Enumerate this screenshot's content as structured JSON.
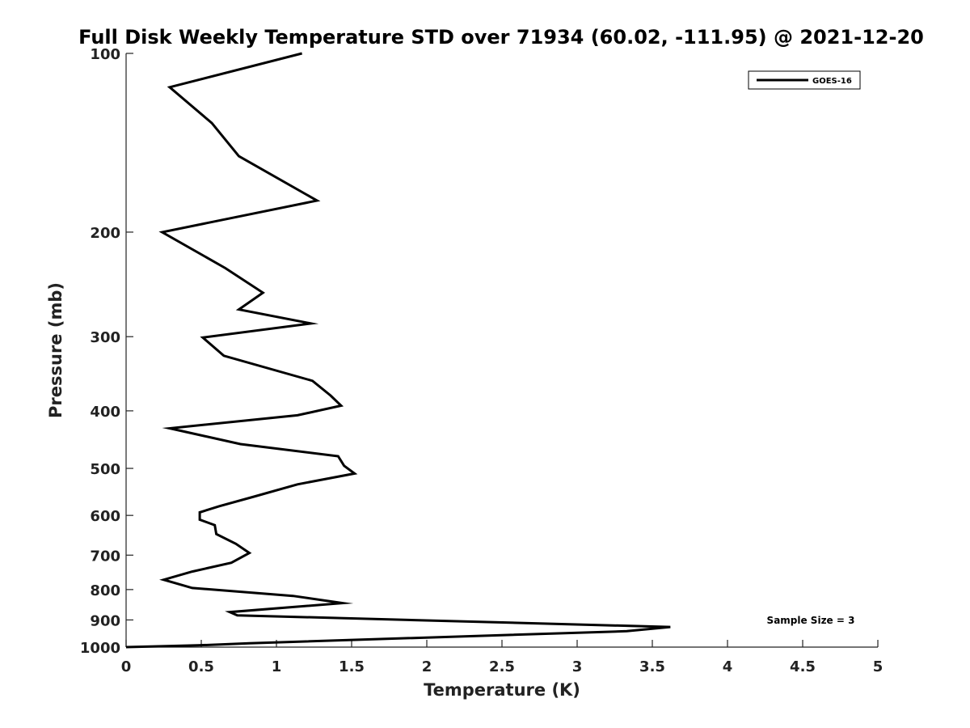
{
  "chart_data": {
    "type": "line",
    "title": "Full Disk Weekly Temperature STD over 71934 (60.02, -111.95) @ 2021-12-20",
    "xlabel": "Temperature (K)",
    "ylabel": "Pressure (mb)",
    "xlim": [
      0,
      5
    ],
    "ylim": [
      100,
      1000
    ],
    "y_scale": "log",
    "y_reversed": true,
    "x_ticks": [
      0,
      0.5,
      1,
      1.5,
      2,
      2.5,
      3,
      3.5,
      4,
      4.5,
      5
    ],
    "x_tick_labels": [
      "0",
      "0.5",
      "1",
      "1.5",
      "2",
      "2.5",
      "3",
      "3.5",
      "4",
      "4.5",
      "5"
    ],
    "y_ticks": [
      100,
      200,
      300,
      400,
      500,
      600,
      700,
      800,
      900,
      1000
    ],
    "y_tick_labels": [
      "100",
      "200",
      "300",
      "400",
      "500",
      "600",
      "700",
      "800",
      "900",
      "1000"
    ],
    "grid": false,
    "legend_position": "top-right",
    "series": [
      {
        "name": "GOES-16",
        "color": "#000000",
        "x": [
          1.17,
          0.29,
          0.57,
          0.75,
          1.27,
          0.24,
          0.66,
          0.91,
          0.75,
          1.23,
          0.51,
          0.65,
          1.24,
          1.36,
          1.43,
          1.14,
          0.29,
          0.76,
          1.41,
          1.45,
          1.52,
          1.14,
          0.85,
          0.62,
          0.49,
          0.49,
          0.59,
          0.6,
          0.73,
          0.82,
          0.7,
          0.44,
          0.25,
          0.44,
          1.11,
          1.44,
          0.69,
          0.74,
          3.62,
          3.33,
          0.82,
          0.48,
          0.0
        ],
        "y": [
          100,
          114,
          131,
          149,
          177,
          200,
          230,
          253,
          270,
          285,
          301,
          323,
          356,
          377,
          392,
          407,
          428,
          455,
          477,
          495,
          510,
          532,
          558,
          579,
          593,
          610,
          623,
          645,
          670,
          694,
          721,
          746,
          770,
          795,
          820,
          843,
          873,
          884,
          925,
          940,
          985,
          993,
          1000
        ]
      }
    ],
    "annotation": "Sample Size = 3"
  }
}
